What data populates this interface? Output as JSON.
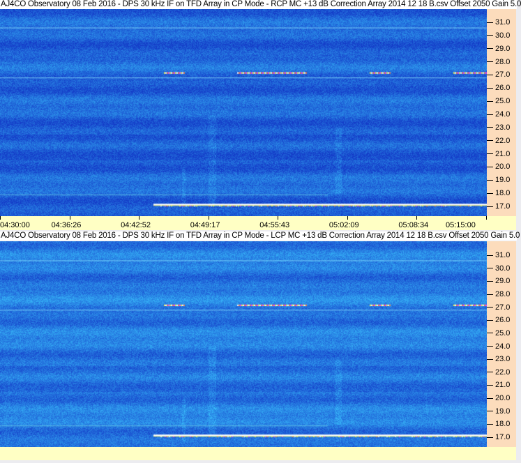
{
  "panels": [
    {
      "title": "AJ4CO Observatory 08 Feb 2016 - DPS 30 kHz IF on TFD Array in CP Mode - RCP  MC +13 dB  Correction Array 2014 12 18 B.csv  Offset 2050  Gain 5.0",
      "polarization": "RCP"
    },
    {
      "title": "AJ4CO Observatory 08 Feb 2016 - DPS 30 kHz IF on TFD Array in CP Mode - LCP  MC +13 dB  Correction Array 2014 12 18 B.csv  Offset 2050  Gain 5.0",
      "polarization": "LCP"
    }
  ],
  "chart_data": {
    "type": "heatmap",
    "y_ticks": [
      "31.0",
      "30.0",
      "29.0",
      "28.0",
      "27.0",
      "26.0",
      "25.0",
      "24.0",
      "23.0",
      "22.0",
      "21.0",
      "20.0",
      "19.0",
      "18.0",
      "17.0"
    ],
    "x_ticks": [
      "04:30:00",
      "04:36:26",
      "04:42:52",
      "04:49:17",
      "04:55:43",
      "05:02:09",
      "05:08:34",
      "05:15:00"
    ],
    "ylim": [
      16.6,
      31.7
    ],
    "xlim": [
      "04:30:00",
      "05:15:00"
    ],
    "colors": {
      "background": "#1e50e0",
      "plot_bg": "#fcdcbc",
      "time_axis_bg": "#ffffc4"
    }
  }
}
